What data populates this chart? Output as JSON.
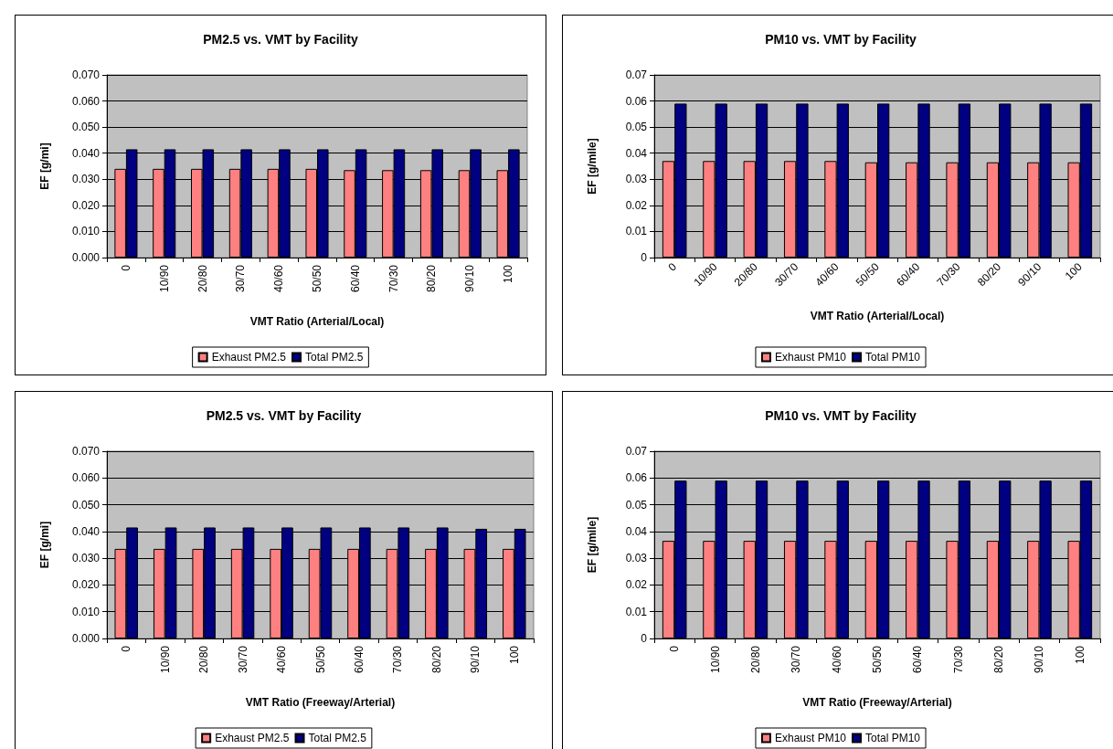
{
  "chart_data": [
    {
      "type": "bar",
      "title": "PM2.5 vs. VMT by Facility",
      "xlabel": "VMT Ratio (Arterial/Local)",
      "ylabel": "EF [g/mi]",
      "categories": [
        "0",
        "10/90",
        "20/80",
        "30/70",
        "40/60",
        "50/50",
        "60/40",
        "70/30",
        "80/20",
        "90/10",
        "100"
      ],
      "series": [
        {
          "name": "Exhaust PM2.5",
          "color": "#ff8080",
          "values": [
            0.034,
            0.034,
            0.034,
            0.034,
            0.034,
            0.034,
            0.0335,
            0.0335,
            0.0335,
            0.0335,
            0.0335
          ]
        },
        {
          "name": "Total PM2.5",
          "color": "#000080",
          "values": [
            0.0415,
            0.0415,
            0.0415,
            0.0415,
            0.0415,
            0.0415,
            0.0415,
            0.0415,
            0.0415,
            0.0415,
            0.0415
          ]
        }
      ],
      "ylim": [
        0,
        0.07
      ],
      "yticks": [
        {
          "value": 0,
          "label": "0.000"
        },
        {
          "value": 0.01,
          "label": "0.010"
        },
        {
          "value": 0.02,
          "label": "0.020"
        },
        {
          "value": 0.03,
          "label": "0.030"
        },
        {
          "value": 0.04,
          "label": "0.040"
        },
        {
          "value": 0.05,
          "label": "0.050"
        },
        {
          "value": 0.06,
          "label": "0.060"
        },
        {
          "value": 0.07,
          "label": "0.070"
        }
      ],
      "grid": "y",
      "legend": "bottom"
    },
    {
      "type": "bar",
      "title": "PM10 vs. VMT by Facility",
      "xlabel": "VMT Ratio (Arterial/Local)",
      "ylabel": "EF [g/mile]",
      "categories": [
        "0",
        "10/90",
        "20/80",
        "30/70",
        "40/60",
        "50/50",
        "60/40",
        "70/30",
        "80/20",
        "90/10",
        "100"
      ],
      "series": [
        {
          "name": "Exhaust PM10",
          "color": "#ff8080",
          "values": [
            0.037,
            0.037,
            0.037,
            0.037,
            0.037,
            0.0365,
            0.0365,
            0.0365,
            0.0365,
            0.0365,
            0.0365
          ]
        },
        {
          "name": "Total PM10",
          "color": "#000080",
          "values": [
            0.059,
            0.059,
            0.059,
            0.059,
            0.059,
            0.059,
            0.059,
            0.059,
            0.059,
            0.059,
            0.059
          ]
        }
      ],
      "ylim": [
        0,
        0.07
      ],
      "yticks": [
        0,
        0.01,
        0.02,
        0.03,
        0.04,
        0.05,
        0.06,
        0.07
      ],
      "grid": "y",
      "legend": "bottom"
    },
    {
      "type": "bar",
      "title": "PM2.5 vs. VMT by Facility",
      "xlabel": "VMT Ratio (Freeway/Arterial)",
      "ylabel": "EF [g/mi]",
      "categories": [
        "0",
        "10/90",
        "20/80",
        "30/70",
        "40/60",
        "50/50",
        "60/40",
        "70/30",
        "80/20",
        "90/10",
        "100"
      ],
      "series": [
        {
          "name": "Exhaust PM2.5",
          "color": "#ff8080",
          "values": [
            0.0335,
            0.0335,
            0.0335,
            0.0335,
            0.0335,
            0.0335,
            0.0335,
            0.0335,
            0.0335,
            0.0335,
            0.0335
          ]
        },
        {
          "name": "Total PM2.5",
          "color": "#000080",
          "values": [
            0.0415,
            0.0415,
            0.0415,
            0.0415,
            0.0415,
            0.0415,
            0.0415,
            0.0415,
            0.0415,
            0.041,
            0.041
          ]
        }
      ],
      "ylim": [
        0,
        0.07
      ],
      "yticks": [
        {
          "value": 0,
          "label": "0.000"
        },
        {
          "value": 0.01,
          "label": "0.010"
        },
        {
          "value": 0.02,
          "label": "0.020"
        },
        {
          "value": 0.03,
          "label": "0.030"
        },
        {
          "value": 0.04,
          "label": "0.040"
        },
        {
          "value": 0.05,
          "label": "0.050"
        },
        {
          "value": 0.06,
          "label": "0.060"
        },
        {
          "value": 0.07,
          "label": "0.070"
        }
      ],
      "grid": "y",
      "legend": "bottom"
    },
    {
      "type": "bar",
      "title": "PM10 vs. VMT by Facility",
      "xlabel": "VMT Ratio (Freeway/Arterial)",
      "ylabel": "EF [g/mile]",
      "categories": [
        "0",
        "10/90",
        "20/80",
        "30/70",
        "40/60",
        "50/50",
        "60/40",
        "70/30",
        "80/20",
        "90/10",
        "100"
      ],
      "series": [
        {
          "name": "Exhaust PM10",
          "color": "#ff8080",
          "values": [
            0.0365,
            0.0365,
            0.0365,
            0.0365,
            0.0365,
            0.0365,
            0.0365,
            0.0365,
            0.0365,
            0.0365,
            0.0365
          ]
        },
        {
          "name": "Total PM10",
          "color": "#000080",
          "values": [
            0.059,
            0.059,
            0.059,
            0.059,
            0.059,
            0.059,
            0.059,
            0.059,
            0.059,
            0.059,
            0.059
          ]
        }
      ],
      "ylim": [
        0,
        0.07
      ],
      "yticks": [
        0,
        0.01,
        0.02,
        0.03,
        0.04,
        0.05,
        0.06,
        0.07
      ],
      "grid": "y",
      "legend": "bottom"
    }
  ]
}
